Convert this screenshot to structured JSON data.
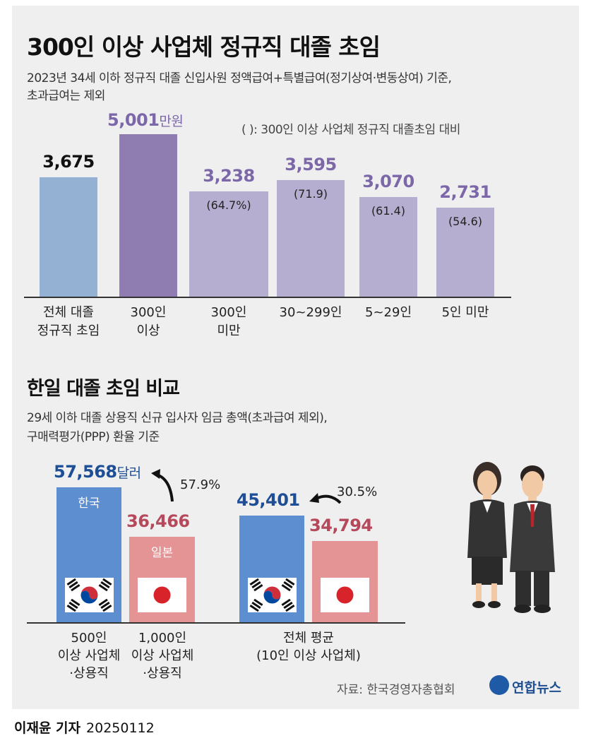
{
  "title": "300인 이상 사업체 정규직 대졸 초임",
  "subtitle_line1": "2023년 34세 이하 정규직 대졸 신입사원 정액급여+특별급여(정기상여·변동상여) 기준,",
  "subtitle_line2": "초과급여는 제외",
  "unit": "만원",
  "note": "( ): 300인 이상 사업체 정규직 대졸초임 대비",
  "chart_data": [
    {
      "type": "bar",
      "categories": [
        "전체 대졸\n정규직 초임",
        "300인\n이상",
        "300인\n미만",
        "30~299인",
        "5~29인",
        "5인 미만"
      ],
      "values": [
        3675,
        5001,
        3238,
        3595,
        3070,
        2731
      ],
      "value_labels": [
        "3,675",
        "5,001",
        "3,238",
        "3,595",
        "3,070",
        "2,731"
      ],
      "ratio_labels": [
        "",
        "",
        "(64.7%)",
        "(71.9)",
        "(61.4)",
        "(54.6)"
      ],
      "unit": "만원",
      "colors": [
        "#94b0d3",
        "#8f7cb0",
        "#b5aed0",
        "#b5aed0",
        "#b5aed0",
        "#b5aed0"
      ],
      "label_colors": [
        "#111111",
        "#7c67a9",
        "#7c67a9",
        "#7c67a9",
        "#7c67a9",
        "#7c67a9"
      ],
      "ylim": [
        0,
        5001
      ],
      "title": "300인 이상 사업체 정규직 대졸 초임"
    },
    {
      "type": "bar",
      "title": "한일 대졸 초임 비교",
      "subtitle_line1": "29세 이하 대졸 상용직 신규 입사자 임금 총액(초과급여 제외),",
      "subtitle_line2": "구매력평가(PPP) 환율 기준",
      "groups": [
        {
          "label": "500인\n이상 사업체\n·상용직",
          "country": "한국",
          "value": 57568,
          "value_label": "57,568",
          "unit": "달러",
          "color": "#5d8fd0",
          "label_color": "#1e4f96"
        },
        {
          "label": "1,000인\n이상 사업체\n·상용직",
          "country": "일본",
          "value": 36466,
          "value_label": "36,466",
          "color": "#e49494",
          "label_color": "#b6485b"
        },
        {
          "label": "전체 평균\n(10인 이상 사업체)",
          "korea_value": 45401,
          "korea_value_label": "45,401",
          "japan_value": 34794,
          "japan_value_label": "34,794"
        }
      ],
      "diff_labels": [
        "57.9%",
        "30.5%"
      ]
    }
  ],
  "section2": {
    "title": "한일 대졸 초임 비교",
    "subtitle_line1": "29세 이하 대졸 상용직 신규 입사자 임금 총액(초과급여 제외),",
    "subtitle_line2": "구매력평가(PPP) 환율 기준",
    "korea_label": "한국",
    "japan_label": "일본",
    "unit": "달러",
    "diff1": "57.9%",
    "diff2": "30.5%"
  },
  "source": "자료: 한국경영자총협회",
  "logo_text": "연합뉴스",
  "byline": "이재윤 기자",
  "date": "20250112",
  "colors": {
    "korea_blue": "#5d8fd0",
    "japan_pink": "#e49494",
    "purple_dark": "#8f7cb0",
    "purple_light": "#b5aed0",
    "steel_blue": "#94b0d3"
  }
}
